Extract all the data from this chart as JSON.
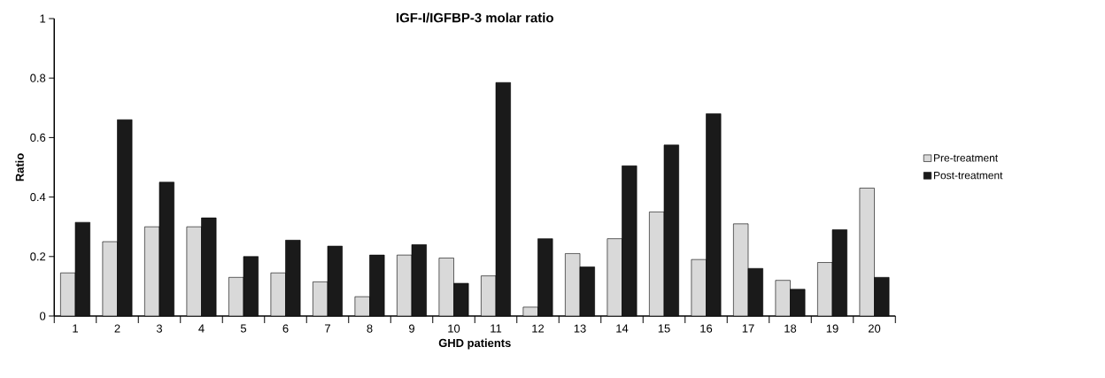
{
  "chart_data": {
    "type": "bar",
    "title": "IGF-I/IGFBP-3 molar ratio",
    "xlabel": "GHD patients",
    "ylabel": "Ratio",
    "categories": [
      "1",
      "2",
      "3",
      "4",
      "5",
      "6",
      "7",
      "8",
      "9",
      "10",
      "11",
      "12",
      "13",
      "14",
      "15",
      "16",
      "17",
      "18",
      "19",
      "20"
    ],
    "series": [
      {
        "name": "Pre-treatment",
        "color": "#d9d9d9",
        "values": [
          0.145,
          0.25,
          0.3,
          0.3,
          0.13,
          0.145,
          0.115,
          0.065,
          0.205,
          0.195,
          0.135,
          0.03,
          0.21,
          0.26,
          0.35,
          0.19,
          0.31,
          0.12,
          0.18,
          0.43
        ]
      },
      {
        "name": "Post-treatment",
        "color": "#1a1a1a",
        "values": [
          0.315,
          0.66,
          0.45,
          0.33,
          0.2,
          0.255,
          0.235,
          0.205,
          0.24,
          0.11,
          0.785,
          0.26,
          0.165,
          0.505,
          0.575,
          0.68,
          0.16,
          0.09,
          0.29,
          0.13
        ]
      }
    ],
    "ylim": [
      0,
      1
    ],
    "yticks": [
      0,
      0.2,
      0.4,
      0.6,
      0.8,
      1
    ],
    "grid": false,
    "legend": "right"
  }
}
